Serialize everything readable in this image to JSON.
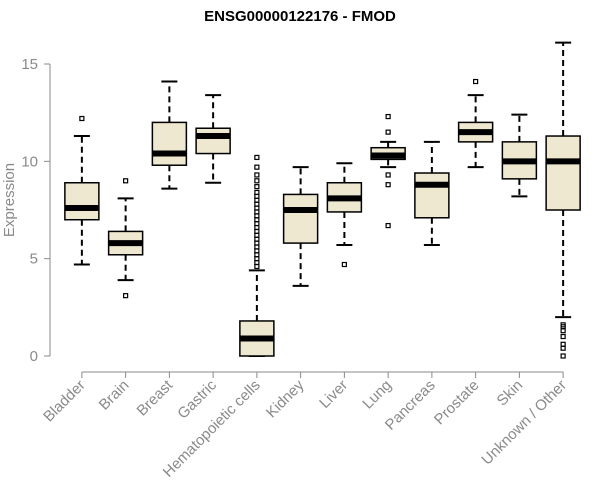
{
  "chart_data": {
    "type": "boxplot",
    "title": "ENSG00000122176 - FMOD",
    "xlabel": "",
    "ylabel": "Expression",
    "ylim": [
      0,
      16
    ],
    "yticks": [
      0,
      5,
      10,
      15
    ],
    "grid": false,
    "box_color": "#efe8d0",
    "categories": [
      "Bladder",
      "Brain",
      "Breast",
      "Gastric",
      "Hematopoietic cells",
      "Kidney",
      "Liver",
      "Lung",
      "Pancreas",
      "Prostate",
      "Skin",
      "Unknown / Other"
    ],
    "boxes": [
      {
        "name": "Bladder",
        "whisker_low": 4.7,
        "q1": 7.0,
        "median": 7.6,
        "q3": 8.9,
        "whisker_high": 11.3,
        "outliers": [
          12.2
        ]
      },
      {
        "name": "Brain",
        "whisker_low": 3.9,
        "q1": 5.2,
        "median": 5.8,
        "q3": 6.4,
        "whisker_high": 8.1,
        "outliers": [
          3.1,
          9.0
        ]
      },
      {
        "name": "Breast",
        "whisker_low": 8.6,
        "q1": 9.8,
        "median": 10.4,
        "q3": 12.0,
        "whisker_high": 14.1,
        "outliers": []
      },
      {
        "name": "Gastric",
        "whisker_low": 8.9,
        "q1": 10.4,
        "median": 11.3,
        "q3": 11.7,
        "whisker_high": 13.4,
        "outliers": []
      },
      {
        "name": "Hematopoietic cells",
        "whisker_low": 0.0,
        "q1": 0.0,
        "median": 0.9,
        "q3": 1.8,
        "whisker_high": 4.4,
        "outliers": [
          4.6,
          4.8,
          5.0,
          5.2,
          5.4,
          5.6,
          5.8,
          6.0,
          6.2,
          6.4,
          6.6,
          6.8,
          7.0,
          7.2,
          7.4,
          7.6,
          7.8,
          8.0,
          8.2,
          8.4,
          8.7,
          9.0,
          9.3,
          9.7,
          10.2
        ]
      },
      {
        "name": "Kidney",
        "whisker_low": 3.6,
        "q1": 5.8,
        "median": 7.5,
        "q3": 8.3,
        "whisker_high": 9.7,
        "outliers": []
      },
      {
        "name": "Liver",
        "whisker_low": 5.7,
        "q1": 7.4,
        "median": 8.1,
        "q3": 8.9,
        "whisker_high": 9.9,
        "outliers": [
          4.7
        ]
      },
      {
        "name": "Lung",
        "whisker_low": 9.7,
        "q1": 10.1,
        "median": 10.3,
        "q3": 10.7,
        "whisker_high": 11.0,
        "outliers": [
          6.7,
          8.8,
          9.3,
          11.5,
          12.3
        ]
      },
      {
        "name": "Pancreas",
        "whisker_low": 5.7,
        "q1": 7.1,
        "median": 8.8,
        "q3": 9.4,
        "whisker_high": 11.0,
        "outliers": []
      },
      {
        "name": "Prostate",
        "whisker_low": 9.7,
        "q1": 11.0,
        "median": 11.5,
        "q3": 12.0,
        "whisker_high": 13.4,
        "outliers": [
          14.1
        ]
      },
      {
        "name": "Skin",
        "whisker_low": 8.2,
        "q1": 9.1,
        "median": 10.0,
        "q3": 11.0,
        "whisker_high": 12.4,
        "outliers": []
      },
      {
        "name": "Unknown / Other",
        "whisker_low": 2.0,
        "q1": 7.5,
        "median": 10.0,
        "q3": 11.3,
        "whisker_high": 16.1,
        "outliers": [
          0.0,
          0.4,
          0.6,
          1.0,
          1.3,
          1.5,
          1.6
        ]
      }
    ]
  }
}
